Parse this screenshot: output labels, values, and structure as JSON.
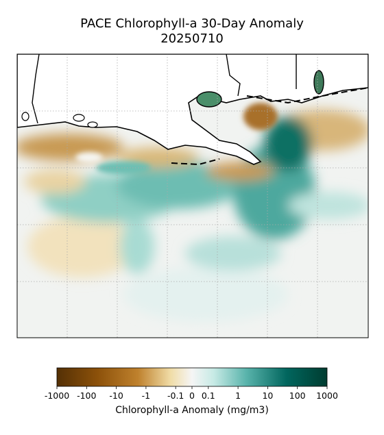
{
  "title": "PACE Chlorophyll-a 30-Day Anomaly",
  "date": "20250710",
  "colorbar": {
    "label": "Chlorophyll-a Anomaly (mg/m3)",
    "ticks": [
      {
        "value": -1000,
        "label": "-1000"
      },
      {
        "value": -100,
        "label": "-100"
      },
      {
        "value": -10,
        "label": "-10"
      },
      {
        "value": -1,
        "label": "-1"
      },
      {
        "value": -0.1,
        "label": "-0.1"
      },
      0,
      0.1,
      1,
      10,
      100,
      1000
    ],
    "scale": "symlog"
  }
}
